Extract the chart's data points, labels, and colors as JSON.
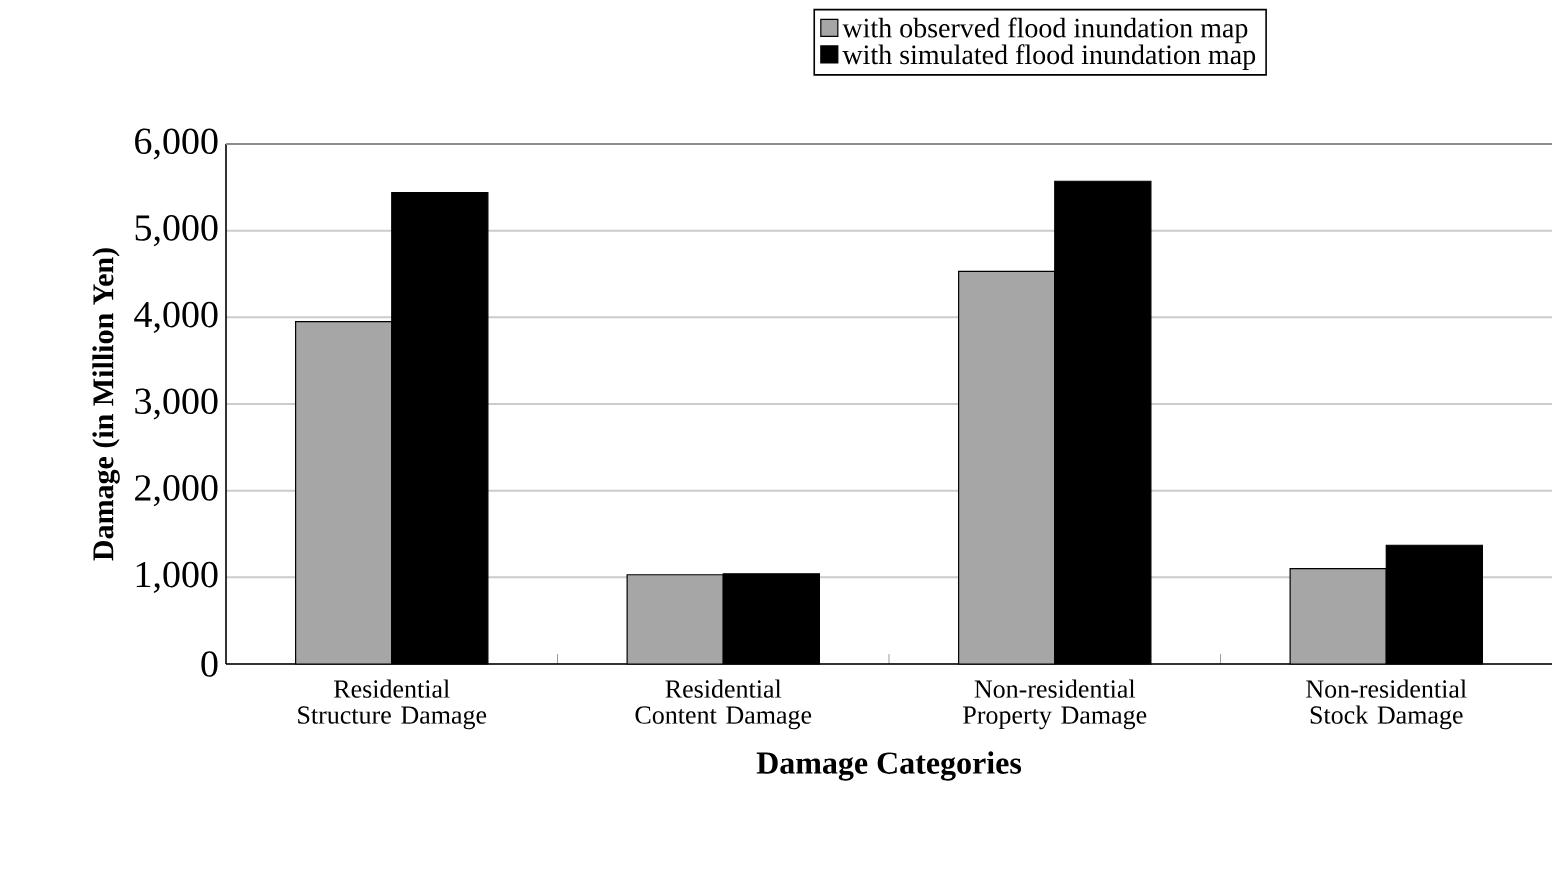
{
  "chart_data": {
    "type": "bar",
    "xlabel": "Damage Categories",
    "ylabel": "Damage (in Million Yen)",
    "categories": [
      "Residential Structure Damage",
      "Residential Content Damage",
      "Non-residential Property Damage",
      "Non-residential Stock Damage"
    ],
    "series": [
      {
        "name": "with observed flood inundation map",
        "color": "#a6a6a6",
        "values": [
          3950,
          1030,
          4530,
          1100
        ]
      },
      {
        "name": "with simulated flood inundation map",
        "color": "#000000",
        "values": [
          5440,
          1040,
          5570,
          1370
        ]
      }
    ],
    "ylim": [
      0,
      6000
    ],
    "yticks": [
      0,
      {
        "value": 1000,
        "label": "1,000"
      },
      {
        "value": 2000,
        "label": "2,000"
      },
      {
        "value": 3000,
        "label": "3,000"
      },
      {
        "value": 4000,
        "label": "4,000"
      },
      {
        "value": 5000,
        "label": "5,000"
      },
      {
        "value": 6000,
        "label": "6,000"
      }
    ],
    "grid": "y",
    "legend": "top"
  }
}
